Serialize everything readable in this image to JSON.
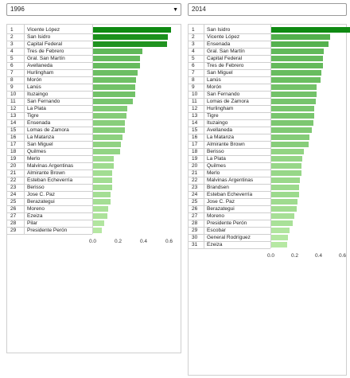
{
  "left": {
    "selected_year": "1996",
    "dropdown_icon": "triangle-down-icon",
    "rows": [
      {
        "rank": "1",
        "name": "Vicente López",
        "value": 0.61
      },
      {
        "rank": "2",
        "name": "San Isidro",
        "value": 0.59
      },
      {
        "rank": "3",
        "name": "Capital Federal",
        "value": 0.58
      },
      {
        "rank": "4",
        "name": "Tres de Febrero",
        "value": 0.39
      },
      {
        "rank": "5",
        "name": "Gral. San Martín",
        "value": 0.37
      },
      {
        "rank": "6",
        "name": "Avellaneda",
        "value": 0.37
      },
      {
        "rank": "7",
        "name": "Hurlingham",
        "value": 0.35
      },
      {
        "rank": "8",
        "name": "Morón",
        "value": 0.34
      },
      {
        "rank": "9",
        "name": "Lanús",
        "value": 0.33
      },
      {
        "rank": "10",
        "name": "Ituzaingo",
        "value": 0.33
      },
      {
        "rank": "11",
        "name": "San Fernando",
        "value": 0.31
      },
      {
        "rank": "12",
        "name": "La Plata",
        "value": 0.27
      },
      {
        "rank": "13",
        "name": "Tigre",
        "value": 0.26
      },
      {
        "rank": "14",
        "name": "Ensenada",
        "value": 0.25
      },
      {
        "rank": "15",
        "name": "Lomas de Zamora",
        "value": 0.25
      },
      {
        "rank": "16",
        "name": "La Matanza",
        "value": 0.23
      },
      {
        "rank": "17",
        "name": "San Miguel",
        "value": 0.22
      },
      {
        "rank": "18",
        "name": "Quilmes",
        "value": 0.21
      },
      {
        "rank": "19",
        "name": "Merlo",
        "value": 0.16
      },
      {
        "rank": "20",
        "name": "Malvinas Argentinas",
        "value": 0.16
      },
      {
        "rank": "21",
        "name": "Almirante Brown",
        "value": 0.15
      },
      {
        "rank": "22",
        "name": "Esteban Echeverría",
        "value": 0.15
      },
      {
        "rank": "23",
        "name": "Berisso",
        "value": 0.15
      },
      {
        "rank": "24",
        "name": "Jose C. Paz",
        "value": 0.14
      },
      {
        "rank": "25",
        "name": "Berazategui",
        "value": 0.14
      },
      {
        "rank": "26",
        "name": "Moreno",
        "value": 0.12
      },
      {
        "rank": "27",
        "name": "Ezeiza",
        "value": 0.11
      },
      {
        "rank": "28",
        "name": "Pilar",
        "value": 0.09
      },
      {
        "rank": "29",
        "name": "Presidente Perón",
        "value": 0.07
      }
    ],
    "axis_ticks": [
      "0.0",
      "0.2",
      "0.4",
      "0.6"
    ]
  },
  "right": {
    "selected_year": "2014",
    "rows": [
      {
        "rank": "1",
        "name": "San Isidro",
        "value": 0.66
      },
      {
        "rank": "2",
        "name": "Vicente López",
        "value": 0.49
      },
      {
        "rank": "3",
        "name": "Ensenada",
        "value": 0.48
      },
      {
        "rank": "4",
        "name": "Gral. San Martín",
        "value": 0.44
      },
      {
        "rank": "5",
        "name": "Capital Federal",
        "value": 0.43
      },
      {
        "rank": "6",
        "name": "Tres de Febrero",
        "value": 0.43
      },
      {
        "rank": "7",
        "name": "San Miguel",
        "value": 0.42
      },
      {
        "rank": "8",
        "name": "Lanús",
        "value": 0.41
      },
      {
        "rank": "9",
        "name": "Morón",
        "value": 0.38
      },
      {
        "rank": "10",
        "name": "San Fernando",
        "value": 0.38
      },
      {
        "rank": "11",
        "name": "Lomas de Zamora",
        "value": 0.37
      },
      {
        "rank": "12",
        "name": "Hurlingham",
        "value": 0.36
      },
      {
        "rank": "13",
        "name": "Tigre",
        "value": 0.36
      },
      {
        "rank": "14",
        "name": "Ituzaingo",
        "value": 0.35
      },
      {
        "rank": "15",
        "name": "Avellaneda",
        "value": 0.34
      },
      {
        "rank": "16",
        "name": "La Matanza",
        "value": 0.32
      },
      {
        "rank": "17",
        "name": "Almirante Brown",
        "value": 0.31
      },
      {
        "rank": "18",
        "name": "Berisso",
        "value": 0.27
      },
      {
        "rank": "19",
        "name": "La Plata",
        "value": 0.26
      },
      {
        "rank": "20",
        "name": "Quilmes",
        "value": 0.25
      },
      {
        "rank": "21",
        "name": "Merlo",
        "value": 0.25
      },
      {
        "rank": "22",
        "name": "Malvinas Argentinas",
        "value": 0.24
      },
      {
        "rank": "23",
        "name": "Brandsen",
        "value": 0.23
      },
      {
        "rank": "24",
        "name": "Esteban Echeverría",
        "value": 0.23
      },
      {
        "rank": "25",
        "name": "Jose C. Paz",
        "value": 0.22
      },
      {
        "rank": "26",
        "name": "Berazategui",
        "value": 0.21
      },
      {
        "rank": "27",
        "name": "Moreno",
        "value": 0.19
      },
      {
        "rank": "28",
        "name": "Presidente Perón",
        "value": 0.18
      },
      {
        "rank": "29",
        "name": "Escobar",
        "value": 0.15
      },
      {
        "rank": "30",
        "name": "General Rodríguez",
        "value": 0.14
      },
      {
        "rank": "31",
        "name": "Ezeiza",
        "value": 0.13
      }
    ],
    "axis_ticks": [
      "0.0",
      "0.2",
      "0.4",
      "0.6"
    ]
  },
  "colors": {
    "bar_dark": "#0f8a12",
    "bar_light": "#b6e8a3",
    "grid": "#cfcfcf"
  },
  "chart_data": [
    {
      "type": "bar",
      "categories": [
        "Vicente López",
        "San Isidro",
        "Capital Federal",
        "Tres de Febrero",
        "Gral. San Martín",
        "Avellaneda",
        "Hurlingham",
        "Morón",
        "Lanús",
        "Ituzaingo",
        "San Fernando",
        "La Plata",
        "Tigre",
        "Ensenada",
        "Lomas de Zamora",
        "La Matanza",
        "San Miguel",
        "Quilmes",
        "Merlo",
        "Malvinas Argentinas",
        "Almirante Brown",
        "Esteban Echeverría",
        "Berisso",
        "Jose C. Paz",
        "Berazategui",
        "Moreno",
        "Ezeiza",
        "Pilar",
        "Presidente Perón"
      ],
      "values": [
        0.61,
        0.59,
        0.58,
        0.39,
        0.37,
        0.37,
        0.35,
        0.34,
        0.33,
        0.33,
        0.31,
        0.27,
        0.26,
        0.25,
        0.25,
        0.23,
        0.22,
        0.21,
        0.16,
        0.16,
        0.15,
        0.15,
        0.15,
        0.14,
        0.14,
        0.12,
        0.11,
        0.09,
        0.07
      ],
      "title": "1996",
      "xlim": [
        0,
        0.65
      ],
      "ticks": [
        0.0,
        0.2,
        0.4,
        0.6
      ]
    },
    {
      "type": "bar",
      "categories": [
        "San Isidro",
        "Vicente López",
        "Ensenada",
        "Gral. San Martín",
        "Capital Federal",
        "Tres de Febrero",
        "San Miguel",
        "Lanús",
        "Morón",
        "San Fernando",
        "Lomas de Zamora",
        "Hurlingham",
        "Tigre",
        "Ituzaingo",
        "Avellaneda",
        "La Matanza",
        "Almirante Brown",
        "Berisso",
        "La Plata",
        "Quilmes",
        "Merlo",
        "Malvinas Argentinas",
        "Brandsen",
        "Esteban Echeverría",
        "Jose C. Paz",
        "Berazategui",
        "Moreno",
        "Presidente Perón",
        "Escobar",
        "General Rodríguez",
        "Ezeiza"
      ],
      "values": [
        0.66,
        0.49,
        0.48,
        0.44,
        0.43,
        0.43,
        0.42,
        0.41,
        0.38,
        0.38,
        0.37,
        0.36,
        0.36,
        0.35,
        0.34,
        0.32,
        0.31,
        0.27,
        0.26,
        0.25,
        0.25,
        0.24,
        0.23,
        0.23,
        0.22,
        0.21,
        0.19,
        0.18,
        0.15,
        0.14,
        0.13
      ],
      "title": "2014",
      "xlim": [
        0,
        0.65
      ],
      "ticks": [
        0.0,
        0.2,
        0.4,
        0.6
      ]
    }
  ]
}
